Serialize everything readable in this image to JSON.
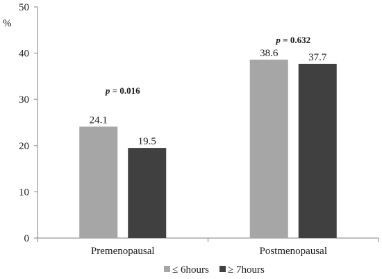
{
  "chart_data": {
    "type": "bar",
    "ylabel": "%",
    "ylim": [
      0,
      50
    ],
    "yticks": [
      "0",
      "10",
      "20",
      "30",
      "40",
      "50"
    ],
    "categories": [
      "Premenopausal",
      "Postmenopausal"
    ],
    "series": [
      {
        "name": "≤ 6hours",
        "color": "#a6a6a6",
        "values": [
          24.1,
          38.6
        ],
        "labels": [
          "24.1",
          "38.6"
        ]
      },
      {
        "name": "≥ 7hours",
        "color": "#404040",
        "values": [
          19.5,
          37.7
        ],
        "labels": [
          "19.5",
          "37.7"
        ]
      }
    ],
    "annotations": [
      {
        "category": "Premenopausal",
        "italic": "p",
        "rest": " = 0.016"
      },
      {
        "category": "Postmenopausal",
        "italic": "p",
        "rest": " = 0.632"
      }
    ],
    "grid": false,
    "legend_position": "bottom"
  }
}
